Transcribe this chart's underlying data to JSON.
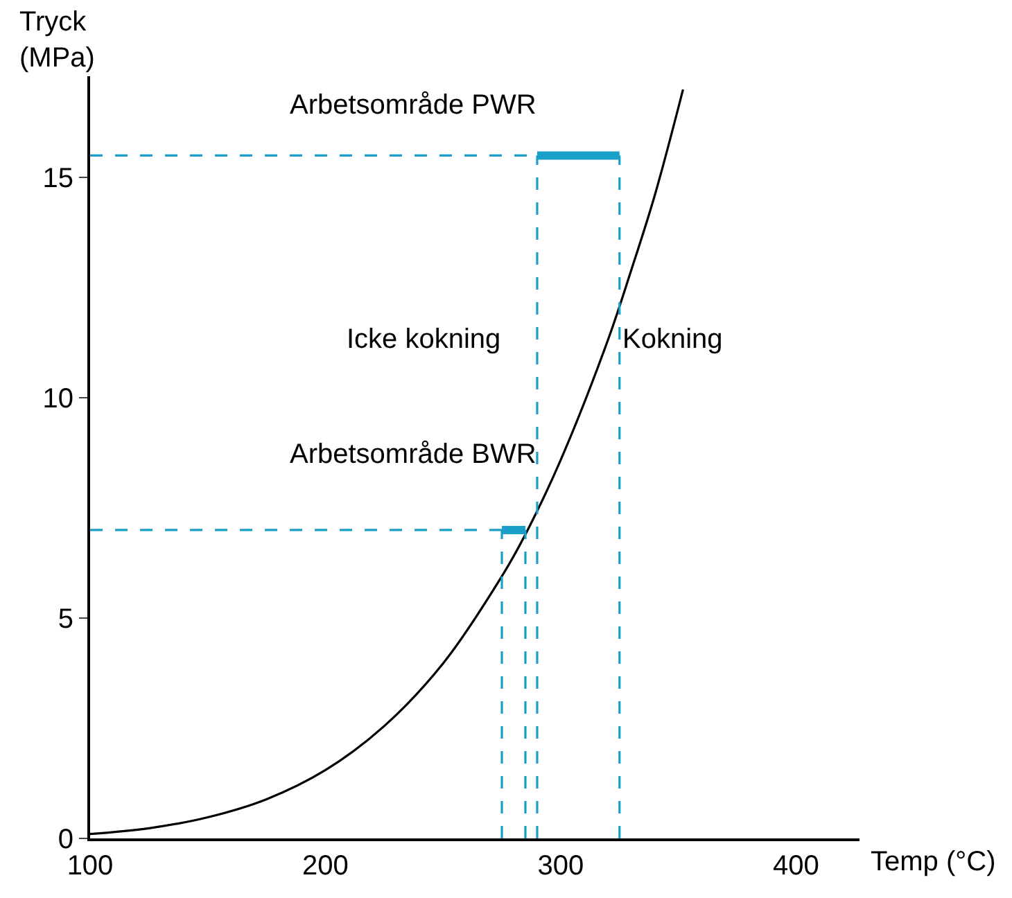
{
  "chart_data": {
    "type": "line",
    "xlabel": "Temp (°C)",
    "ylabel": "Tryck\n(MPa)",
    "xlim": [
      100,
      427
    ],
    "ylim": [
      0,
      17.3
    ],
    "xticks": [
      100,
      200,
      300,
      400
    ],
    "yticks": [
      0,
      5,
      10,
      15
    ],
    "marker": "none",
    "series": [
      {
        "color": "#000000",
        "line_style": "solid",
        "x": [
          100,
          125,
          150,
          175,
          200,
          225,
          250,
          275,
          285,
          300,
          320,
          330,
          340,
          352
        ],
        "values": [
          0.1,
          0.23,
          0.48,
          0.89,
          1.55,
          2.55,
          3.97,
          5.95,
          6.9,
          8.59,
          11.3,
          12.9,
          14.6,
          17.0
        ]
      },
      {
        "color": "#1aa0c8",
        "line_style": "dashed",
        "x": [
          100,
          325
        ],
        "values": [
          15.5,
          15.5
        ]
      },
      {
        "color": "#1aa0c8",
        "line_style": "dashed",
        "x": [
          290,
          290
        ],
        "values": [
          0,
          15.5
        ]
      },
      {
        "color": "#1aa0c8",
        "line_style": "dashed",
        "x": [
          325,
          325
        ],
        "values": [
          0,
          15.5
        ]
      },
      {
        "color": "#1aa0c8",
        "line_style": "dashed",
        "x": [
          100,
          285
        ],
        "values": [
          7,
          7
        ]
      },
      {
        "color": "#1aa0c8",
        "line_style": "dashed",
        "x": [
          275,
          275
        ],
        "values": [
          0,
          7
        ]
      },
      {
        "color": "#1aa0c8",
        "line_style": "dashed",
        "x": [
          285,
          285
        ],
        "values": [
          0,
          7
        ]
      },
      {
        "color": "#1aa0c8",
        "line_style": "solid",
        "x": [
          290,
          325
        ],
        "values": [
          15.5,
          15.5
        ]
      },
      {
        "color": "#1aa0c8",
        "line_style": "solid",
        "x": [
          275,
          285
        ],
        "values": [
          7,
          7
        ]
      }
    ],
    "annotations": [
      "Arbetsområde PWR",
      "Icke kokning",
      "Kokning",
      "Arbetsområde BWR"
    ]
  }
}
